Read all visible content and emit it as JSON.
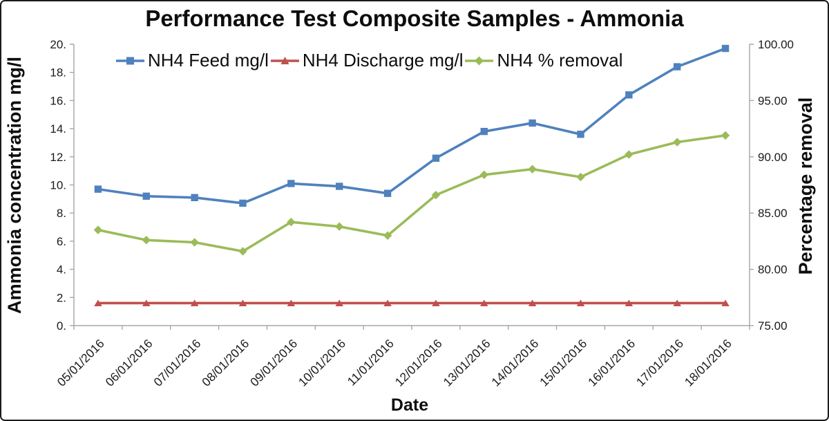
{
  "frame": {
    "background": "#ffffff",
    "border_color": "#1b1b1b",
    "axis_line_color": "#a6a6a6",
    "tick_label_color": "#1a1a1a"
  },
  "chart_data": {
    "type": "line",
    "title": "Performance Test Composite Samples - Ammonia",
    "xlabel": "Date",
    "ylabel_left": "Ammonia concentration mg/l",
    "ylabel_right": "Percentage removal",
    "grid": false,
    "legend_position": "top-inside",
    "categories": [
      "05/01/2016",
      "06/01/2016",
      "07/01/2016",
      "08/01/2016",
      "09/01/2016",
      "10/01/2016",
      "11/01/2016",
      "12/01/2016",
      "13/01/2016",
      "14/01/2016",
      "15/01/2016",
      "16/01/2016",
      "17/01/2016",
      "18/01/2016"
    ],
    "y_left_axis": {
      "min": 0,
      "max": 20,
      "step": 2,
      "tick_labels": [
        "0.",
        "2.",
        "4.",
        "6.",
        "8.",
        "10.",
        "12.",
        "14.",
        "16.",
        "18.",
        "20."
      ]
    },
    "y_right_axis": {
      "min": 75,
      "max": 100,
      "step": 5,
      "tick_labels": [
        "75.00",
        "80.00",
        "85.00",
        "90.00",
        "95.00",
        "100.00"
      ]
    },
    "series": [
      {
        "name": "NH4 Feed mg/l",
        "axis": "left",
        "color": "#4f81bd",
        "marker": "square",
        "values": [
          9.7,
          9.2,
          9.1,
          8.7,
          10.1,
          9.9,
          9.4,
          11.9,
          13.8,
          14.4,
          13.6,
          16.4,
          18.4,
          19.7
        ]
      },
      {
        "name": "NH4 Discharge mg/l",
        "axis": "left",
        "color": "#c0504d",
        "marker": "triangle",
        "values": [
          1.6,
          1.6,
          1.6,
          1.6,
          1.6,
          1.6,
          1.6,
          1.6,
          1.6,
          1.6,
          1.6,
          1.6,
          1.6,
          1.6
        ]
      },
      {
        "name": "NH4 % removal",
        "axis": "right",
        "color": "#9bbb59",
        "marker": "diamond",
        "values": [
          83.5,
          82.6,
          82.4,
          81.6,
          84.2,
          83.8,
          83.0,
          86.6,
          88.4,
          88.9,
          88.2,
          90.2,
          91.3,
          91.9
        ]
      }
    ]
  }
}
